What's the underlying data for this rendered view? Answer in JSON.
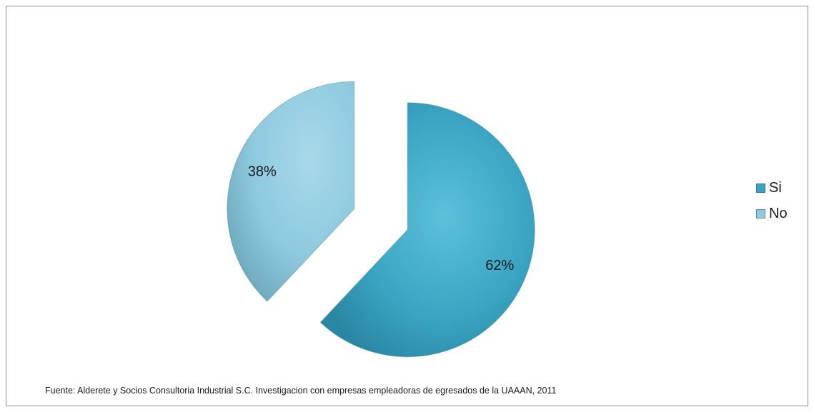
{
  "chart_data": {
    "type": "pie",
    "exploded": true,
    "categories": [
      "Si",
      "No"
    ],
    "values": [
      62,
      38
    ],
    "data_labels": [
      "62%",
      "38%"
    ],
    "colors": [
      "#3aa5c3",
      "#8ec9de"
    ],
    "legend_position": "right",
    "title": ""
  },
  "legend": {
    "items": [
      {
        "label": "Si",
        "color": "#3aa5c3"
      },
      {
        "label": "No",
        "color": "#8ec9de"
      }
    ]
  },
  "source_note": "Fuente: Alderete y Socios Consultoria Industrial S.C. Investigacion con empresas empleadoras de  egresados de la UAAAN,  2011"
}
